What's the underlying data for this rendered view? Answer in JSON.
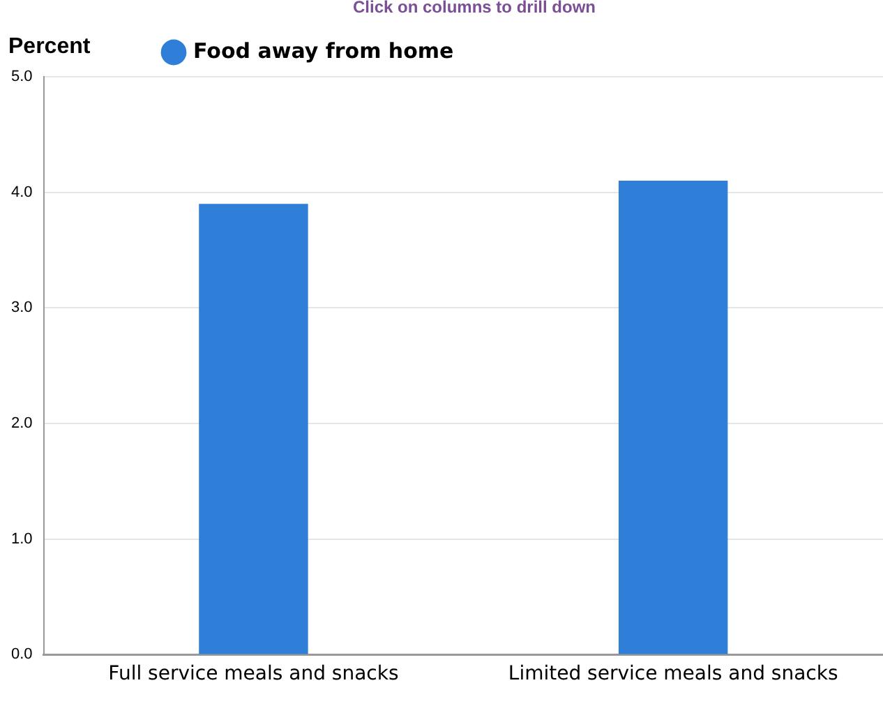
{
  "chart_data": {
    "type": "bar",
    "ylabel": "Percent",
    "annotations": [
      "Click on columns to drill down"
    ],
    "categories": [
      "Full service meals and snacks",
      "Limited service meals and snacks"
    ],
    "series": [
      {
        "name": "Food away from home",
        "color": "#2f7ed8",
        "values": [
          3.9,
          4.1
        ]
      }
    ],
    "ylim": [
      0,
      5
    ],
    "yticks": [
      {
        "value": 0,
        "label": "0.0"
      },
      {
        "value": 1,
        "label": "1.0"
      },
      {
        "value": 2,
        "label": "2.0"
      },
      {
        "value": 3,
        "label": "3.0"
      },
      {
        "value": 4,
        "label": "4.0"
      },
      {
        "value": 5,
        "label": "5.0"
      }
    ],
    "grid": "y",
    "legend": "top left"
  }
}
